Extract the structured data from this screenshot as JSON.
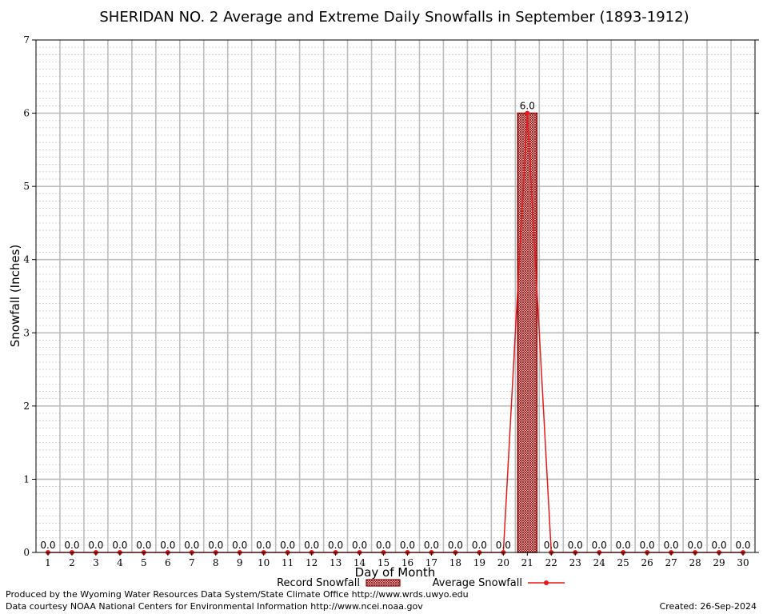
{
  "chart_data": {
    "type": "bar",
    "title": "SHERIDAN NO. 2 Average and Extreme Daily Snowfalls in September (1893-1912)",
    "xlabel": "Day of Month",
    "ylabel": "Snowfall (Inches)",
    "ylim": [
      0,
      7
    ],
    "yticks": [
      "0",
      "1",
      "2",
      "3",
      "4",
      "5",
      "6",
      "7"
    ],
    "categories": [
      "1",
      "2",
      "3",
      "4",
      "5",
      "6",
      "7",
      "8",
      "9",
      "10",
      "11",
      "12",
      "13",
      "14",
      "15",
      "16",
      "17",
      "18",
      "19",
      "20",
      "21",
      "22",
      "23",
      "24",
      "25",
      "26",
      "27",
      "28",
      "29",
      "30"
    ],
    "grid": true,
    "legend_position": "bottom",
    "series": [
      {
        "name": "Record Snowfall",
        "kind": "bar",
        "color": "#8b0000",
        "values": [
          0,
          0,
          0,
          0,
          0,
          0,
          0,
          0,
          0,
          0,
          0,
          0,
          0,
          0,
          0,
          0,
          0,
          0,
          0,
          0,
          6.0,
          0,
          0,
          0,
          0,
          0,
          0,
          0,
          0,
          0
        ]
      },
      {
        "name": "Average Snowfall",
        "kind": "line",
        "color": "#e41a1c",
        "values": [
          0,
          0,
          0,
          0,
          0,
          0,
          0,
          0,
          0,
          0,
          0,
          0,
          0,
          0,
          0,
          0,
          0,
          0,
          0,
          0,
          6.0,
          0,
          0,
          0,
          0,
          0,
          0,
          0,
          0,
          0
        ]
      }
    ],
    "data_labels": [
      "0.0",
      "0.0",
      "0.0",
      "0.0",
      "0.0",
      "0.0",
      "0.0",
      "0.0",
      "0.0",
      "0.0",
      "0.0",
      "0.0",
      "0.0",
      "0.0",
      "0.0",
      "0.0",
      "0.0",
      "0.0",
      "0.0",
      "0.0",
      "6.0",
      "0.0",
      "0.0",
      "0.0",
      "0.0",
      "0.0",
      "0.0",
      "0.0",
      "0.0",
      "0.0"
    ]
  },
  "footer": {
    "produced_by": "Produced by the Wyoming Water Resources Data System/State Climate Office http://www.wrds.uwyo.edu",
    "courtesy": "Data courtesy NOAA National Centers for Environmental Information http://www.ncei.noaa.gov",
    "created": "Created: 26-Sep-2024"
  },
  "colors": {
    "record_bar": "#8b0000",
    "average_line": "#e41a1c",
    "major_grid": "#bdbdbd",
    "minor_grid": "#cfcfcf"
  }
}
